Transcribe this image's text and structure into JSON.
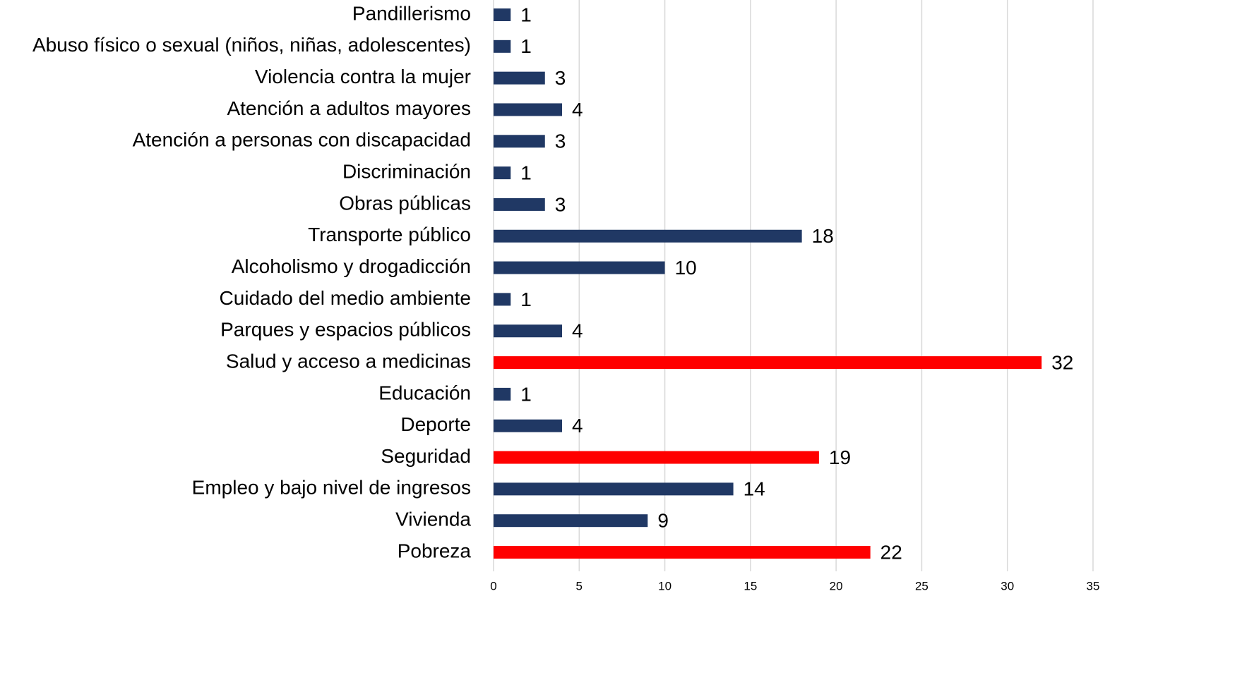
{
  "chart_data": {
    "type": "bar",
    "orientation": "horizontal",
    "categories": [
      "Pandillerismo",
      "Abuso físico o sexual (niños, niñas, adolescentes)",
      "Violencia contra la mujer",
      "Atención a adultos mayores",
      "Atención a personas con discapacidad",
      "Discriminación",
      "Obras públicas",
      "Transporte público",
      "Alcoholismo y drogadicción",
      "Cuidado del medio ambiente",
      "Parques y espacios públicos",
      "Salud y acceso a medicinas",
      "Educación",
      "Deporte",
      "Seguridad",
      "Empleo y bajo nivel de ingresos",
      "Vivienda",
      "Pobreza"
    ],
    "values": [
      1,
      1,
      3,
      4,
      3,
      1,
      3,
      18,
      10,
      1,
      4,
      32,
      1,
      4,
      19,
      14,
      9,
      22
    ],
    "colors": [
      "#203864",
      "#203864",
      "#203864",
      "#203864",
      "#203864",
      "#203864",
      "#203864",
      "#203864",
      "#203864",
      "#203864",
      "#203864",
      "#ff0000",
      "#203864",
      "#203864",
      "#ff0000",
      "#203864",
      "#203864",
      "#ff0000"
    ],
    "xlim": [
      0,
      35
    ],
    "xticks": [
      0,
      5,
      10,
      15,
      20,
      25,
      30,
      35
    ],
    "grid": true
  }
}
